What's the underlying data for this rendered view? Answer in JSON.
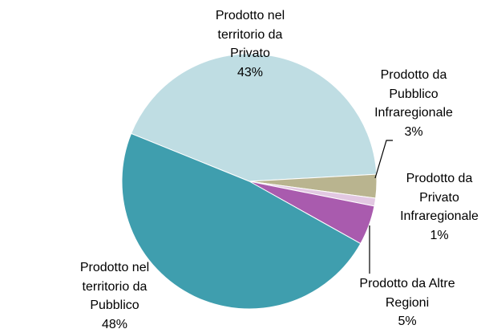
{
  "chart_data": {
    "type": "pie",
    "categories": [
      "Prodotto nel territorio da Privato",
      "Prodotto da Pubblico Infraregionale",
      "Prodotto da Privato Infraregionale",
      "Prodotto da Altre Regioni",
      "Prodotto nel territorio da Pubblico"
    ],
    "values": [
      43,
      3,
      1,
      5,
      48
    ],
    "value_labels": [
      "43%",
      "3%",
      "1%",
      "5%",
      "48%"
    ],
    "colors": [
      "#bfdde3",
      "#b9b48f",
      "#e2c8e2",
      "#a95bae",
      "#3f9eae"
    ]
  }
}
